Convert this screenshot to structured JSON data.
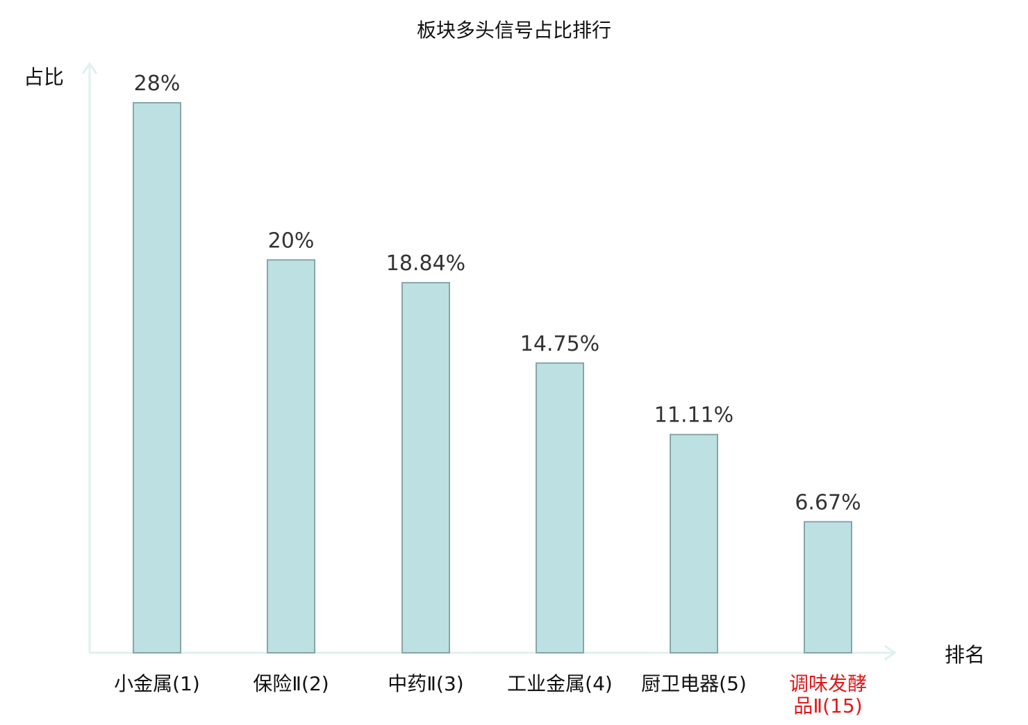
{
  "chart_data": {
    "type": "bar",
    "title": "板块多头信号占比排行",
    "xlabel": "排名",
    "ylabel": "占比",
    "categories": [
      [
        "小金属(1)"
      ],
      [
        "保险Ⅱ(2)"
      ],
      [
        "中药Ⅱ(3)"
      ],
      [
        "工业金属(4)"
      ],
      [
        "厨卫电器(5)"
      ],
      [
        "调味发酵",
        "品Ⅱ(15)"
      ]
    ],
    "values": [
      28,
      20,
      18.84,
      14.75,
      11.11,
      6.67
    ],
    "value_labels": [
      "28%",
      "20%",
      "18.84%",
      "14.75%",
      "11.11%",
      "6.67%"
    ],
    "highlight_index": 5,
    "ylim": [
      0,
      28
    ],
    "grid": false,
    "legend": "none",
    "colors": {
      "bar_fill": "#bde0e2",
      "bar_stroke": "#86a6a8",
      "axis": "#dff1ef",
      "title": "#111111",
      "value_label": "#333333",
      "tick_label": "#111111",
      "highlight": "#e0191b"
    }
  }
}
